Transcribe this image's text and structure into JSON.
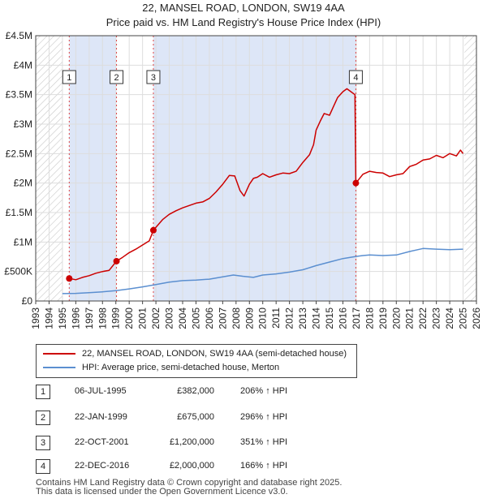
{
  "title_line1": "22, MANSEL ROAD, LONDON, SW19 4AA",
  "title_line2": "Price paid vs. HM Land Registry's House Price Index (HPI)",
  "legend": {
    "property": "22, MANSEL ROAD, LONDON, SW19 4AA (semi-detached house)",
    "hpi": "HPI: Average price, semi-detached house, Merton"
  },
  "transactions": [
    {
      "num": "1",
      "date": "06-JUL-1995",
      "price": "£382,000",
      "hpi": "206% ↑ HPI"
    },
    {
      "num": "2",
      "date": "22-JAN-1999",
      "price": "£675,000",
      "hpi": "296% ↑ HPI"
    },
    {
      "num": "3",
      "date": "22-OCT-2001",
      "price": "£1,200,000",
      "hpi": "351% ↑ HPI"
    },
    {
      "num": "4",
      "date": "22-DEC-2016",
      "price": "£2,000,000",
      "hpi": "166% ↑ HPI"
    }
  ],
  "footer": {
    "line1": "Contains HM Land Registry data © Crown copyright and database right 2025.",
    "line2": "This data is licensed under the Open Government Licence v3.0."
  },
  "chart_data": {
    "type": "line",
    "title": "22, MANSEL ROAD, LONDON, SW19 4AA",
    "subtitle": "Price paid vs. HM Land Registry's House Price Index (HPI)",
    "xlabel": "",
    "ylabel": "",
    "xlim": [
      1993,
      2026
    ],
    "ylim": [
      0,
      4500000
    ],
    "xticks": [
      1993,
      1994,
      1995,
      1996,
      1997,
      1998,
      1999,
      2000,
      2001,
      2002,
      2003,
      2004,
      2005,
      2006,
      2007,
      2008,
      2009,
      2010,
      2011,
      2012,
      2013,
      2014,
      2015,
      2016,
      2017,
      2018,
      2019,
      2020,
      2021,
      2022,
      2023,
      2024,
      2025,
      2026
    ],
    "yticks": [
      {
        "value": 0,
        "label": "£0"
      },
      {
        "value": 500000,
        "label": "£500K"
      },
      {
        "value": 1000000,
        "label": "£1M"
      },
      {
        "value": 1500000,
        "label": "£1.5M"
      },
      {
        "value": 2000000,
        "label": "£2M"
      },
      {
        "value": 2500000,
        "label": "£2.5M"
      },
      {
        "value": 3000000,
        "label": "£3M"
      },
      {
        "value": 3500000,
        "label": "£3.5M"
      },
      {
        "value": 4000000,
        "label": "£4M"
      },
      {
        "value": 4500000,
        "label": "£4.5M"
      }
    ],
    "grid": true,
    "hatched_ranges": [
      [
        1993,
        1995.0
      ],
      [
        2025.1,
        2026
      ]
    ],
    "colors": {
      "property": "#cc0000",
      "hpi": "#5b8fd0",
      "shade": "#dde6f7",
      "grid": "#dddddd",
      "vline": "#dd4444",
      "hatch": "#bbbbbb"
    },
    "series": [
      {
        "name": "22, MANSEL ROAD, LONDON, SW19 4AA (semi-detached house)",
        "color": "#cc0000",
        "x": [
          1995.51,
          1996.0,
          1996.5,
          1997.0,
          1997.5,
          1998.0,
          1998.5,
          1999.05,
          1999.5,
          2000.0,
          2000.5,
          2001.0,
          2001.5,
          2001.81,
          2002.5,
          2003.0,
          2003.5,
          2004.0,
          2004.5,
          2005.0,
          2005.5,
          2006.0,
          2006.5,
          2007.0,
          2007.5,
          2007.9,
          2008.3,
          2008.6,
          2009.0,
          2009.3,
          2009.6,
          2010.0,
          2010.5,
          2011.0,
          2011.5,
          2012.0,
          2012.5,
          2013.0,
          2013.5,
          2013.8,
          2014.0,
          2014.3,
          2014.6,
          2015.0,
          2015.3,
          2015.6,
          2016.0,
          2016.3,
          2016.6,
          2016.9,
          2016.97,
          2017.5,
          2018.0,
          2018.5,
          2019.0,
          2019.5,
          2020.0,
          2020.5,
          2021.0,
          2021.5,
          2022.0,
          2022.5,
          2023.0,
          2023.5,
          2024.0,
          2024.5,
          2024.8,
          2025.0
        ],
        "values": [
          382000,
          360000,
          400000,
          430000,
          470000,
          500000,
          520000,
          675000,
          740000,
          820000,
          880000,
          950000,
          1020000,
          1200000,
          1380000,
          1470000,
          1530000,
          1580000,
          1620000,
          1660000,
          1680000,
          1740000,
          1850000,
          1980000,
          2130000,
          2120000,
          1870000,
          1780000,
          1980000,
          2080000,
          2100000,
          2160000,
          2100000,
          2140000,
          2170000,
          2160000,
          2200000,
          2350000,
          2480000,
          2650000,
          2900000,
          3050000,
          3180000,
          3150000,
          3300000,
          3450000,
          3550000,
          3600000,
          3550000,
          3500000,
          2000000,
          2150000,
          2200000,
          2180000,
          2170000,
          2110000,
          2140000,
          2160000,
          2280000,
          2320000,
          2390000,
          2410000,
          2470000,
          2430000,
          2500000,
          2460000,
          2560000,
          2500000
        ]
      },
      {
        "name": "HPI: Average price, semi-detached house, Merton",
        "color": "#5b8fd0",
        "x": [
          1995.0,
          1996.0,
          1997.0,
          1998.0,
          1999.0,
          2000.0,
          2001.0,
          2002.0,
          2003.0,
          2004.0,
          2005.0,
          2006.0,
          2007.0,
          2007.8,
          2008.5,
          2009.3,
          2010.0,
          2011.0,
          2012.0,
          2013.0,
          2014.0,
          2015.0,
          2016.0,
          2016.97,
          2017.5,
          2018.0,
          2019.0,
          2020.0,
          2021.0,
          2022.0,
          2023.0,
          2024.0,
          2025.0
        ],
        "values": [
          125000,
          130000,
          140000,
          155000,
          175000,
          205000,
          240000,
          280000,
          320000,
          345000,
          355000,
          370000,
          410000,
          440000,
          420000,
          400000,
          440000,
          460000,
          490000,
          530000,
          600000,
          660000,
          720000,
          755000,
          770000,
          780000,
          770000,
          780000,
          840000,
          890000,
          880000,
          870000,
          880000
        ]
      }
    ],
    "sale_markers": [
      {
        "label": "1",
        "x": 1995.51,
        "value": 382000
      },
      {
        "label": "2",
        "x": 1999.05,
        "value": 675000
      },
      {
        "label": "3",
        "x": 2001.81,
        "value": 1200000
      },
      {
        "label": "4",
        "x": 2016.97,
        "value": 2000000
      }
    ]
  }
}
